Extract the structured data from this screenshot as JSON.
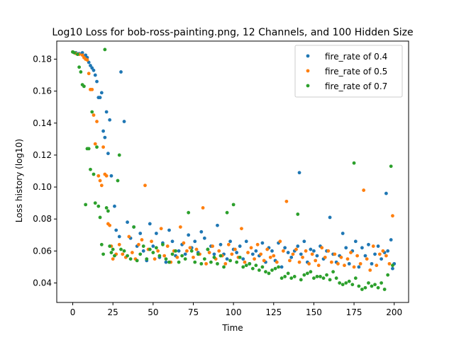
{
  "chart_data": {
    "type": "scatter",
    "title": "Log10 Loss for bob-ross-painting.png, 12 Channels, and 100 Hidden Size",
    "xlabel": "Time",
    "ylabel": "Loss history (log10)",
    "xlim": [
      -9.95,
      208.95
    ],
    "ylim": [
      0.0278,
      0.1913
    ],
    "xticks": [
      0,
      25,
      50,
      75,
      100,
      125,
      150,
      175,
      200
    ],
    "yticks": [
      0.04,
      0.06,
      0.08,
      0.1,
      0.12,
      0.14,
      0.16,
      0.18
    ],
    "ytick_labels": [
      "0.04",
      "0.06",
      "0.08",
      "0.10",
      "0.12",
      "0.14",
      "0.16",
      "0.18"
    ],
    "legend_position": "top-right",
    "grid": false,
    "series": [
      {
        "name": "fire_rate of 0.4",
        "color": "#1f77b4",
        "x": [
          0,
          2,
          4,
          6,
          8,
          9,
          10,
          11,
          12,
          13,
          14,
          15,
          16,
          17,
          18,
          19,
          20,
          21,
          22,
          23,
          24,
          26,
          27,
          29,
          30,
          32,
          34,
          36,
          38,
          40,
          42,
          44,
          46,
          48,
          50,
          52,
          54,
          56,
          58,
          60,
          62,
          64,
          66,
          68,
          70,
          72,
          74,
          76,
          78,
          80,
          82,
          84,
          86,
          88,
          90,
          92,
          94,
          96,
          98,
          100,
          102,
          104,
          106,
          108,
          110,
          112,
          114,
          116,
          118,
          120,
          122,
          124,
          126,
          128,
          130,
          132,
          134,
          136,
          138,
          140,
          141,
          142,
          144,
          146,
          148,
          150,
          152,
          154,
          156,
          158,
          160,
          162,
          164,
          166,
          168,
          170,
          172,
          174,
          176,
          178,
          180,
          182,
          184,
          186,
          188,
          190,
          192,
          194,
          195,
          196,
          198,
          199,
          200
        ],
        "y": [
          0.1845,
          0.184,
          0.1835,
          0.184,
          0.1825,
          0.181,
          0.178,
          0.176,
          0.1745,
          0.173,
          0.17,
          0.166,
          0.156,
          0.156,
          0.159,
          0.135,
          0.131,
          0.147,
          0.121,
          0.142,
          0.107,
          0.088,
          0.073,
          0.069,
          0.172,
          0.141,
          0.078,
          0.068,
          0.075,
          0.063,
          0.071,
          0.06,
          0.054,
          0.077,
          0.063,
          0.071,
          0.056,
          0.065,
          0.053,
          0.073,
          0.066,
          0.057,
          0.06,
          0.064,
          0.058,
          0.07,
          0.062,
          0.066,
          0.059,
          0.072,
          0.068,
          0.061,
          0.063,
          0.058,
          0.076,
          0.064,
          0.058,
          0.055,
          0.066,
          0.061,
          0.059,
          0.063,
          0.055,
          0.066,
          0.052,
          0.058,
          0.06,
          0.057,
          0.065,
          0.053,
          0.062,
          0.06,
          0.054,
          0.065,
          0.05,
          0.062,
          0.059,
          0.056,
          0.06,
          0.063,
          0.109,
          0.058,
          0.066,
          0.053,
          0.061,
          0.06,
          0.057,
          0.063,
          0.055,
          0.06,
          0.081,
          0.058,
          0.053,
          0.057,
          0.071,
          0.062,
          0.052,
          0.06,
          0.066,
          0.05,
          0.062,
          0.057,
          0.064,
          0.052,
          0.058,
          0.063,
          0.055,
          0.059,
          0.096,
          0.06,
          0.067,
          0.049,
          0.052
        ]
      },
      {
        "name": "fire_rate of 0.5",
        "color": "#ff7f0e",
        "x": [
          0,
          2,
          4,
          6,
          7,
          8,
          9,
          10,
          11,
          12,
          13,
          14,
          15,
          16,
          17,
          18,
          19,
          20,
          21,
          22,
          23,
          24,
          25,
          27,
          29,
          31,
          33,
          35,
          37,
          39,
          41,
          43,
          45,
          47,
          49,
          51,
          53,
          55,
          57,
          59,
          61,
          63,
          65,
          67,
          69,
          71,
          73,
          75,
          77,
          79,
          81,
          83,
          85,
          87,
          89,
          91,
          93,
          95,
          97,
          99,
          101,
          103,
          105,
          107,
          109,
          111,
          113,
          115,
          117,
          119,
          121,
          123,
          125,
          127,
          129,
          131,
          133,
          135,
          137,
          139,
          141,
          143,
          145,
          147,
          149,
          151,
          153,
          155,
          157,
          159,
          161,
          163,
          165,
          167,
          169,
          171,
          173,
          175,
          177,
          179,
          181,
          183,
          185,
          187,
          189,
          191,
          193,
          195,
          197,
          199
        ],
        "y": [
          0.1845,
          0.1835,
          0.183,
          0.1825,
          0.181,
          0.18,
          0.1795,
          0.171,
          0.161,
          0.161,
          0.145,
          0.127,
          0.141,
          0.107,
          0.104,
          0.101,
          0.125,
          0.108,
          0.107,
          0.077,
          0.076,
          0.063,
          0.055,
          0.058,
          0.064,
          0.058,
          0.056,
          0.069,
          0.059,
          0.055,
          0.064,
          0.067,
          0.101,
          0.061,
          0.066,
          0.055,
          0.06,
          0.074,
          0.057,
          0.063,
          0.053,
          0.06,
          0.056,
          0.075,
          0.065,
          0.06,
          0.062,
          0.056,
          0.061,
          0.058,
          0.087,
          0.052,
          0.059,
          0.063,
          0.055,
          0.06,
          0.057,
          0.052,
          0.064,
          0.058,
          0.061,
          0.056,
          0.074,
          0.053,
          0.059,
          0.062,
          0.055,
          0.064,
          0.058,
          0.054,
          0.061,
          0.056,
          0.057,
          0.053,
          0.066,
          0.06,
          0.091,
          0.054,
          0.058,
          0.061,
          0.053,
          0.056,
          0.06,
          0.052,
          0.058,
          0.054,
          0.051,
          0.062,
          0.056,
          0.06,
          0.053,
          0.058,
          0.052,
          0.056,
          0.051,
          0.055,
          0.059,
          0.05,
          0.057,
          0.052,
          0.098,
          0.055,
          0.048,
          0.063,
          0.051,
          0.058,
          0.06,
          0.057,
          0.052,
          0.082
        ]
      },
      {
        "name": "fire_rate of 0.7",
        "color": "#2ca02c",
        "x": [
          0,
          1,
          3,
          4,
          5,
          6,
          7,
          8,
          9,
          10,
          11,
          12,
          13,
          14,
          15,
          16,
          17,
          18,
          19,
          20,
          21,
          22,
          23,
          24,
          25,
          26,
          28,
          29,
          30,
          32,
          34,
          36,
          38,
          40,
          42,
          44,
          46,
          48,
          50,
          52,
          54,
          56,
          58,
          60,
          62,
          64,
          66,
          68,
          70,
          72,
          74,
          76,
          78,
          80,
          82,
          84,
          86,
          88,
          90,
          92,
          94,
          96,
          98,
          100,
          102,
          104,
          106,
          108,
          110,
          112,
          114,
          116,
          118,
          120,
          122,
          124,
          126,
          128,
          130,
          132,
          134,
          136,
          138,
          140,
          142,
          144,
          146,
          148,
          150,
          152,
          154,
          156,
          158,
          160,
          162,
          164,
          166,
          168,
          170,
          172,
          174,
          175,
          176,
          178,
          180,
          182,
          184,
          186,
          188,
          190,
          192,
          194,
          196,
          198,
          199
        ],
        "y": [
          0.1845,
          0.184,
          0.183,
          0.175,
          0.172,
          0.164,
          0.163,
          0.089,
          0.124,
          0.124,
          0.111,
          0.147,
          0.108,
          0.09,
          0.125,
          0.088,
          0.081,
          0.064,
          0.058,
          0.186,
          0.087,
          0.085,
          0.063,
          0.059,
          0.061,
          0.057,
          0.104,
          0.12,
          0.061,
          0.06,
          0.057,
          0.055,
          0.075,
          0.054,
          0.058,
          0.063,
          0.055,
          0.061,
          0.059,
          0.062,
          0.057,
          0.064,
          0.055,
          0.053,
          0.058,
          0.06,
          0.053,
          0.057,
          0.055,
          0.084,
          0.06,
          0.053,
          0.058,
          0.052,
          0.055,
          0.061,
          0.053,
          0.056,
          0.052,
          0.057,
          0.05,
          0.084,
          0.054,
          0.089,
          0.053,
          0.056,
          0.05,
          0.051,
          0.052,
          0.049,
          0.051,
          0.048,
          0.05,
          0.047,
          0.046,
          0.048,
          0.049,
          0.05,
          0.043,
          0.044,
          0.046,
          0.043,
          0.044,
          0.083,
          0.042,
          0.045,
          0.046,
          0.047,
          0.043,
          0.044,
          0.044,
          0.043,
          0.045,
          0.042,
          0.047,
          0.043,
          0.04,
          0.039,
          0.04,
          0.041,
          0.039,
          0.115,
          0.043,
          0.038,
          0.036,
          0.037,
          0.04,
          0.038,
          0.039,
          0.037,
          0.04,
          0.036,
          0.045,
          0.113,
          0.051
        ]
      }
    ]
  }
}
